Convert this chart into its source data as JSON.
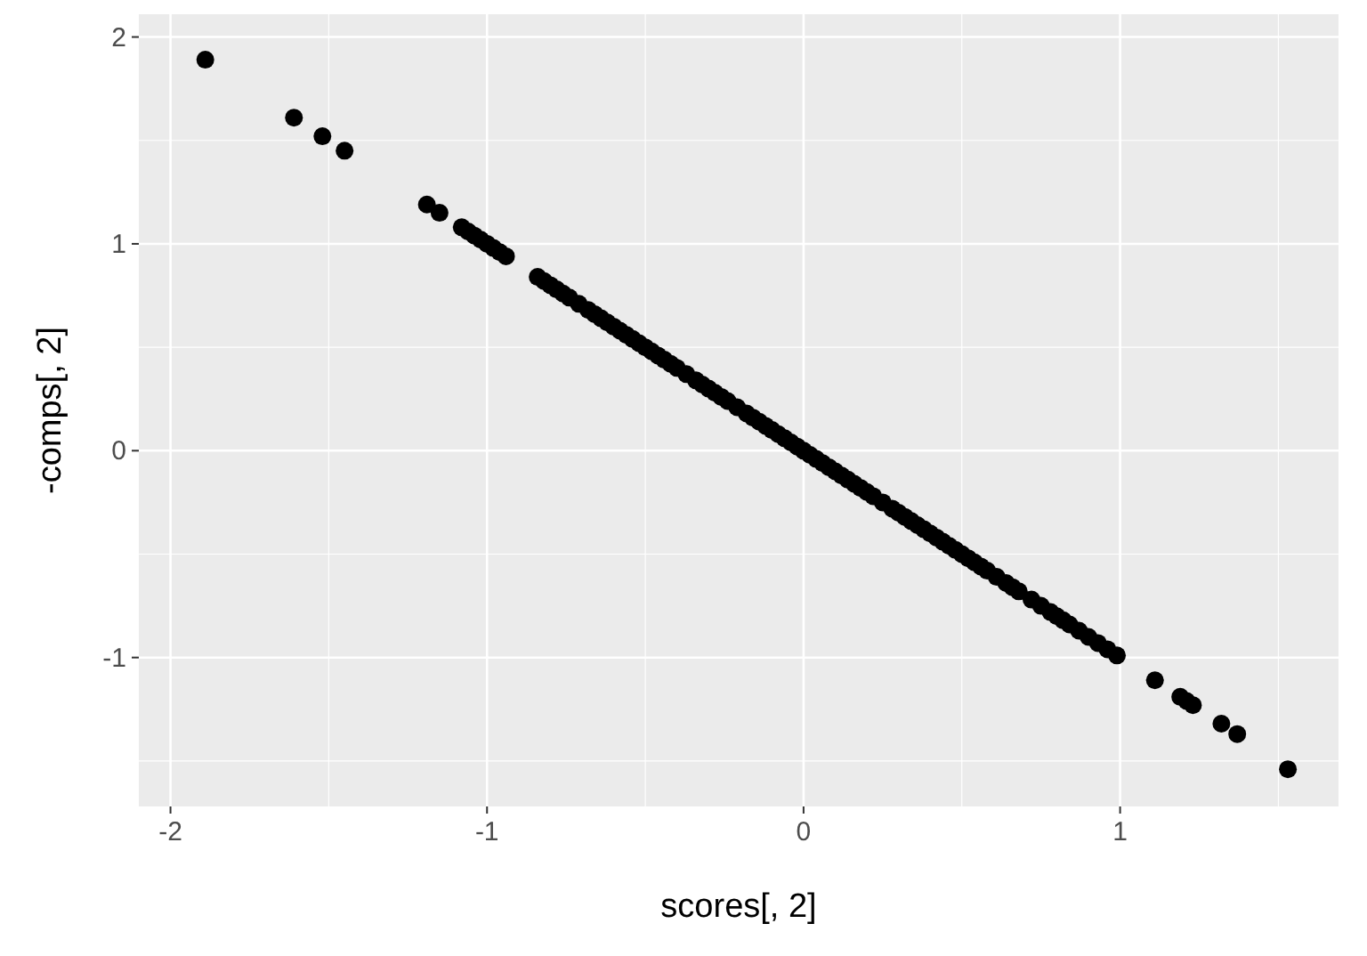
{
  "chart_data": {
    "type": "scatter",
    "xlabel": "scores[, 2]",
    "ylabel": "-comps[, 2]",
    "x": [
      -1.89,
      -1.61,
      -1.52,
      -1.45,
      -1.19,
      -1.15,
      -1.08,
      -1.06,
      -1.04,
      -1.02,
      -1.0,
      -0.98,
      -0.96,
      -0.94,
      -0.84,
      -0.82,
      -0.8,
      -0.78,
      -0.76,
      -0.74,
      -0.71,
      -0.68,
      -0.66,
      -0.64,
      -0.62,
      -0.6,
      -0.58,
      -0.56,
      -0.54,
      -0.52,
      -0.5,
      -0.48,
      -0.46,
      -0.44,
      -0.42,
      -0.4,
      -0.37,
      -0.34,
      -0.32,
      -0.3,
      -0.28,
      -0.26,
      -0.24,
      -0.21,
      -0.18,
      -0.16,
      -0.14,
      -0.12,
      -0.1,
      -0.08,
      -0.06,
      -0.04,
      -0.02,
      0,
      0.02,
      0.04,
      0.06,
      0.08,
      0.1,
      0.12,
      0.14,
      0.16,
      0.18,
      0.2,
      0.22,
      0.25,
      0.28,
      0.3,
      0.32,
      0.34,
      0.36,
      0.38,
      0.4,
      0.42,
      0.44,
      0.46,
      0.48,
      0.5,
      0.52,
      0.54,
      0.56,
      0.58,
      0.61,
      0.64,
      0.66,
      0.68,
      0.72,
      0.75,
      0.78,
      0.8,
      0.82,
      0.84,
      0.87,
      0.9,
      0.93,
      0.96,
      0.99,
      1.11,
      1.19,
      1.21,
      1.23,
      1.32,
      1.37,
      1.53
    ],
    "values": [
      1.89,
      1.61,
      1.52,
      1.45,
      1.19,
      1.15,
      1.08,
      1.06,
      1.04,
      1.02,
      1.0,
      0.98,
      0.96,
      0.94,
      0.84,
      0.82,
      0.8,
      0.78,
      0.76,
      0.74,
      0.71,
      0.68,
      0.66,
      0.64,
      0.62,
      0.6,
      0.58,
      0.56,
      0.54,
      0.52,
      0.5,
      0.48,
      0.46,
      0.44,
      0.42,
      0.4,
      0.37,
      0.34,
      0.32,
      0.3,
      0.28,
      0.26,
      0.24,
      0.21,
      0.18,
      0.16,
      0.14,
      0.12,
      0.1,
      0.08,
      0.06,
      0.04,
      0.02,
      0,
      -0.02,
      -0.04,
      -0.06,
      -0.08,
      -0.1,
      -0.12,
      -0.14,
      -0.16,
      -0.18,
      -0.2,
      -0.22,
      -0.25,
      -0.28,
      -0.3,
      -0.32,
      -0.34,
      -0.36,
      -0.38,
      -0.4,
      -0.42,
      -0.44,
      -0.46,
      -0.48,
      -0.5,
      -0.52,
      -0.54,
      -0.56,
      -0.58,
      -0.61,
      -0.64,
      -0.66,
      -0.68,
      -0.72,
      -0.75,
      -0.78,
      -0.8,
      -0.82,
      -0.84,
      -0.87,
      -0.9,
      -0.93,
      -0.96,
      -0.99,
      -1.11,
      -1.19,
      -1.21,
      -1.23,
      -1.32,
      -1.37,
      -1.54
    ],
    "color": "#000000",
    "marker": "circle",
    "grid": true,
    "xlim": [
      -2.1,
      1.69
    ],
    "ylim": [
      -1.72,
      2.11
    ],
    "xticks": [
      -2,
      -1,
      0,
      1
    ],
    "yticks": [
      -1,
      0,
      1,
      2
    ]
  }
}
